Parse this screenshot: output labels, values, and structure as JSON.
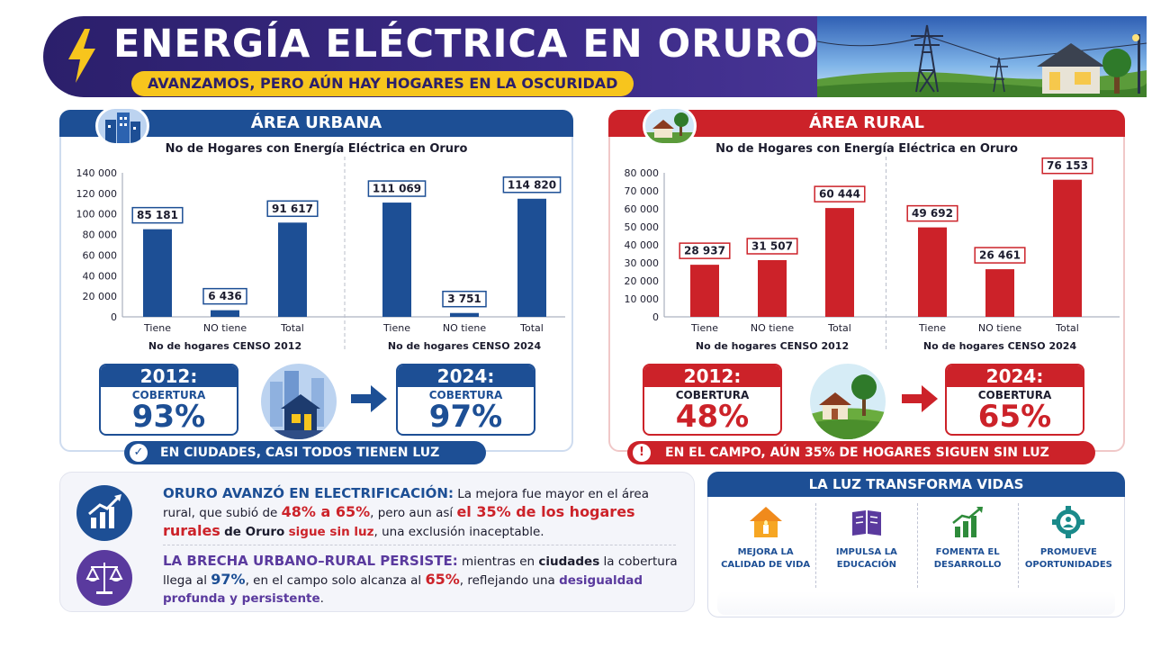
{
  "header": {
    "title": "ENERGÍA ELÉCTRICA EN ORURO",
    "subtitle": "AVANZAMOS, PERO AÚN HAY HOGARES EN LA OSCURIDAD"
  },
  "colors": {
    "urban": "#1d4f95",
    "rural": "#cc2229",
    "accent": "#f7c51d",
    "purple": "#5a3a9e"
  },
  "urban": {
    "title": "ÁREA URBANA",
    "icon": "city-buildings-icon",
    "chart_title": "No de Hogares con Energía Eléctrica en Oruro",
    "coverage_2012": {
      "year": "2012:",
      "label": "COBERTURA",
      "pct": "93%"
    },
    "coverage_2024": {
      "year": "2024:",
      "label": "COBERTURA",
      "pct": "97%"
    },
    "banner": "EN CIUDADES, CASI TODOS TIENEN LUZ"
  },
  "rural": {
    "title": "ÁREA RURAL",
    "icon": "farm-house-icon",
    "chart_title": "No de Hogares con Energía Eléctrica en Oruro",
    "coverage_2012": {
      "year": "2012:",
      "label": "COBERTURA",
      "pct": "48%"
    },
    "coverage_2024": {
      "year": "2024:",
      "label": "COBERTURA",
      "pct": "65%"
    },
    "banner": "EN EL CAMPO, AÚN 35% DE HOGARES SIGUEN SIN LUZ"
  },
  "chart_data": [
    {
      "type": "bar",
      "title": "No de Hogares con Energía Eléctrica en Oruro",
      "groups": [
        {
          "name": "No de hogares CENSO 2012",
          "categories": [
            "Tiene",
            "NO tiene",
            "Total"
          ],
          "values": [
            85181,
            6436,
            91617
          ],
          "labels": [
            "85 181",
            "6 436",
            "91 617"
          ]
        },
        {
          "name": "No de hogares CENSO 2024",
          "categories": [
            "Tiene",
            "NO tiene",
            "Total"
          ],
          "values": [
            111069,
            3751,
            114820
          ],
          "labels": [
            "111 069",
            "3 751",
            "114 820"
          ]
        }
      ],
      "ylim": [
        0,
        140000
      ],
      "yticks": [
        "0",
        "20 000",
        "40 000",
        "60 000",
        "80 000",
        "100 000",
        "120 000",
        "140 000"
      ],
      "color": "#1d4f95"
    },
    {
      "type": "bar",
      "title": "No de Hogares con Energía Eléctrica en Oruro",
      "groups": [
        {
          "name": "No de hogares CENSO 2012",
          "categories": [
            "Tiene",
            "NO tiene",
            "Total"
          ],
          "values": [
            28937,
            31507,
            60444
          ],
          "labels": [
            "28 937",
            "31 507",
            "60 444"
          ]
        },
        {
          "name": "No de hogares CENSO 2024",
          "categories": [
            "Tiene",
            "NO tiene",
            "Total"
          ],
          "values": [
            49692,
            26461,
            76153
          ],
          "labels": [
            "49 692",
            "26 461",
            "76 153"
          ]
        }
      ],
      "ylim": [
        0,
        80000
      ],
      "yticks": [
        "0",
        "10 000",
        "20 000",
        "30 000",
        "40 000",
        "50 000",
        "60 000",
        "70 000",
        "80 000"
      ],
      "color": "#cc2229"
    }
  ],
  "summary": {
    "p1": {
      "head": "ORURO AVANZÓ EN ELECTRIFICACIÓN:",
      "t1": " La mejora fue mayor en el área rural, que subió de ",
      "h1": "48% a 65%",
      "t2": ", pero aun así ",
      "h2": "el 35% de los hogares rurales",
      "t3": " ",
      "h3": "de Oruro",
      "t4": " ",
      "h4": "sigue sin luz",
      "t5": ", una exclusión inaceptable."
    },
    "p2": {
      "head": "LA BRECHA URBANO–RURAL PERSISTE:",
      "t1": " mientras en ",
      "h1": "ciudades",
      "t2": " la cobertura llega al ",
      "h2": "97%",
      "t3": ", en el campo solo alcanza al ",
      "h3": "65%",
      "t4": ", reflejando una ",
      "h4": "desigualdad profunda y persistente",
      "t5": "."
    }
  },
  "impact": {
    "title": "LA LUZ TRANSFORMA VIDAS",
    "items": [
      {
        "label": "MEJORA LA\nCALIDAD DE VIDA",
        "icon": "house-candle-icon"
      },
      {
        "label": "IMPULSA LA\nEDUCACIÓN",
        "icon": "book-icon"
      },
      {
        "label": "FOMENTA EL\nDESARROLLO",
        "icon": "growth-chart-icon"
      },
      {
        "label": "PROMUEVE\nOPORTUNIDADES",
        "icon": "gear-person-icon"
      }
    ]
  }
}
